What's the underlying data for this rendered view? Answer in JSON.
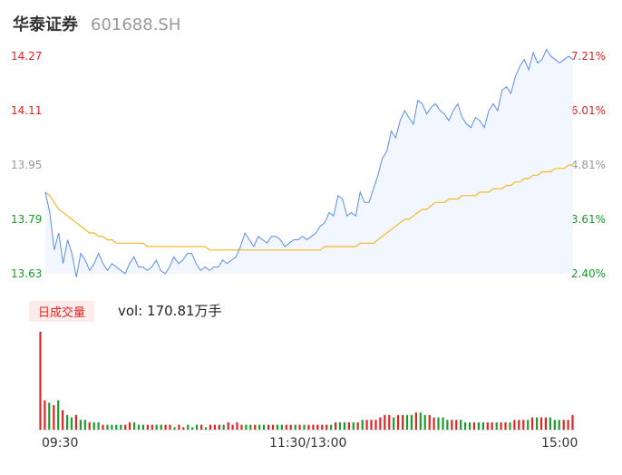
{
  "header": {
    "name": "华泰证券",
    "code": "601688.SH"
  },
  "volume_panel": {
    "tag": "日成交量",
    "vol_text": "vol: 170.81万手"
  },
  "colors": {
    "price_line": "#5b8def",
    "avg_line": "#f5b62a",
    "up": "#e02424",
    "down": "#1a9c2a",
    "flat": "#999999"
  },
  "chart_data": [
    {
      "type": "line",
      "title": "",
      "x_tick_labels": [
        "09:30",
        "11:30/13:00",
        "15:00"
      ],
      "y_left_ticks": [
        "14.27",
        "14.11",
        "13.95",
        "13.79",
        "13.63"
      ],
      "y_right_ticks": [
        "7.21%",
        "6.01%",
        "4.81%",
        "3.61%",
        "2.40%"
      ],
      "ylim": [
        13.63,
        14.27
      ],
      "grid": false,
      "series": [
        {
          "role": "price",
          "values": [
            13.87,
            13.81,
            13.7,
            13.75,
            13.66,
            13.73,
            13.69,
            13.62,
            13.69,
            13.67,
            13.64,
            13.66,
            13.69,
            13.66,
            13.64,
            13.66,
            13.65,
            13.64,
            13.63,
            13.66,
            13.68,
            13.65,
            13.65,
            13.64,
            13.65,
            13.67,
            13.64,
            13.63,
            13.65,
            13.68,
            13.66,
            13.67,
            13.69,
            13.69,
            13.66,
            13.64,
            13.65,
            13.64,
            13.65,
            13.65,
            13.67,
            13.66,
            13.67,
            13.68,
            13.71,
            13.75,
            13.73,
            13.71,
            13.74,
            13.73,
            13.72,
            13.74,
            13.74,
            13.73,
            13.71,
            13.72,
            13.73,
            13.73,
            13.74,
            13.73,
            13.74,
            13.75,
            13.77,
            13.78,
            13.81,
            13.8,
            13.86,
            13.85,
            13.8,
            13.81,
            13.8,
            13.87,
            13.84,
            13.84,
            13.88,
            13.92,
            13.97,
            13.99,
            14.05,
            14.03,
            14.08,
            14.11,
            14.09,
            14.07,
            14.14,
            14.13,
            14.1,
            14.12,
            14.13,
            14.11,
            14.1,
            14.08,
            14.11,
            14.13,
            14.09,
            14.07,
            14.06,
            14.09,
            14.08,
            14.06,
            14.11,
            14.13,
            14.11,
            14.17,
            14.18,
            14.16,
            14.21,
            14.24,
            14.26,
            14.23,
            14.28,
            14.25,
            14.26,
            14.29,
            14.27,
            14.26,
            14.25,
            14.26,
            14.27,
            14.26
          ]
        },
        {
          "role": "average",
          "values": [
            13.87,
            13.86,
            13.84,
            13.82,
            13.81,
            13.8,
            13.79,
            13.78,
            13.77,
            13.76,
            13.75,
            13.75,
            13.74,
            13.74,
            13.73,
            13.73,
            13.72,
            13.72,
            13.72,
            13.72,
            13.72,
            13.72,
            13.72,
            13.71,
            13.71,
            13.71,
            13.71,
            13.71,
            13.71,
            13.71,
            13.71,
            13.71,
            13.71,
            13.71,
            13.71,
            13.71,
            13.71,
            13.7,
            13.7,
            13.7,
            13.7,
            13.7,
            13.7,
            13.7,
            13.7,
            13.7,
            13.7,
            13.7,
            13.7,
            13.7,
            13.7,
            13.7,
            13.7,
            13.7,
            13.7,
            13.7,
            13.7,
            13.7,
            13.7,
            13.7,
            13.7,
            13.7,
            13.7,
            13.71,
            13.71,
            13.71,
            13.71,
            13.71,
            13.71,
            13.71,
            13.71,
            13.72,
            13.72,
            13.72,
            13.72,
            13.73,
            13.74,
            13.75,
            13.76,
            13.77,
            13.78,
            13.79,
            13.79,
            13.8,
            13.81,
            13.82,
            13.82,
            13.83,
            13.84,
            13.84,
            13.84,
            13.85,
            13.85,
            13.85,
            13.86,
            13.86,
            13.86,
            13.86,
            13.87,
            13.87,
            13.87,
            13.88,
            13.88,
            13.88,
            13.89,
            13.89,
            13.9,
            13.9,
            13.91,
            13.91,
            13.92,
            13.92,
            13.93,
            13.93,
            13.93,
            13.94,
            13.94,
            13.94,
            13.95,
            13.95
          ]
        }
      ]
    },
    {
      "type": "bar",
      "title": "",
      "x_tick_labels": [
        "09:30",
        "11:30/13:00",
        "15:00"
      ],
      "values": [
        40,
        12,
        11,
        10,
        12,
        8,
        6,
        5,
        6,
        4,
        4,
        3,
        3,
        3,
        2,
        2,
        2,
        2,
        2,
        2,
        3,
        3,
        2,
        2,
        2,
        2,
        2,
        2,
        2,
        2,
        1,
        2,
        1,
        2,
        1,
        2,
        2,
        1,
        2,
        2,
        2,
        2,
        3,
        2,
        3,
        2,
        2,
        2,
        2,
        2,
        2,
        2,
        2,
        2,
        2,
        2,
        2,
        2,
        2,
        2,
        2,
        2,
        2,
        2,
        2,
        2,
        3,
        3,
        3,
        3,
        3,
        3,
        4,
        4,
        4,
        4,
        5,
        6,
        6,
        5,
        6,
        6,
        6,
        6,
        7,
        7,
        6,
        6,
        5,
        5,
        5,
        4,
        4,
        4,
        4,
        3,
        3,
        3,
        3,
        3,
        3,
        3,
        3,
        3,
        3,
        3,
        4,
        4,
        4,
        4,
        5,
        5,
        5,
        5,
        5,
        4,
        4,
        4,
        4,
        6
      ],
      "directions": [
        "up",
        "up",
        "down",
        "up",
        "down",
        "up",
        "down",
        "down",
        "up",
        "down",
        "down",
        "up",
        "down",
        "down",
        "up",
        "down",
        "down",
        "down",
        "down",
        "up",
        "up",
        "down",
        "down",
        "down",
        "up",
        "up",
        "down",
        "down",
        "up",
        "up",
        "down",
        "up",
        "up",
        "down",
        "down",
        "down",
        "up",
        "down",
        "up",
        "up",
        "up",
        "down",
        "up",
        "up",
        "up",
        "up",
        "down",
        "down",
        "up",
        "down",
        "down",
        "up",
        "up",
        "down",
        "down",
        "up",
        "up",
        "down",
        "up",
        "down",
        "up",
        "up",
        "up",
        "up",
        "up",
        "down",
        "up",
        "down",
        "down",
        "up",
        "down",
        "up",
        "down",
        "up",
        "up",
        "up",
        "up",
        "up",
        "up",
        "down",
        "up",
        "up",
        "down",
        "down",
        "up",
        "down",
        "down",
        "up",
        "up",
        "down",
        "down",
        "down",
        "up",
        "up",
        "down",
        "down",
        "down",
        "up",
        "down",
        "down",
        "up",
        "up",
        "down",
        "up",
        "up",
        "down",
        "up",
        "up",
        "up",
        "down",
        "up",
        "down",
        "up",
        "up",
        "down",
        "down",
        "down",
        "up",
        "up",
        "up"
      ]
    }
  ]
}
